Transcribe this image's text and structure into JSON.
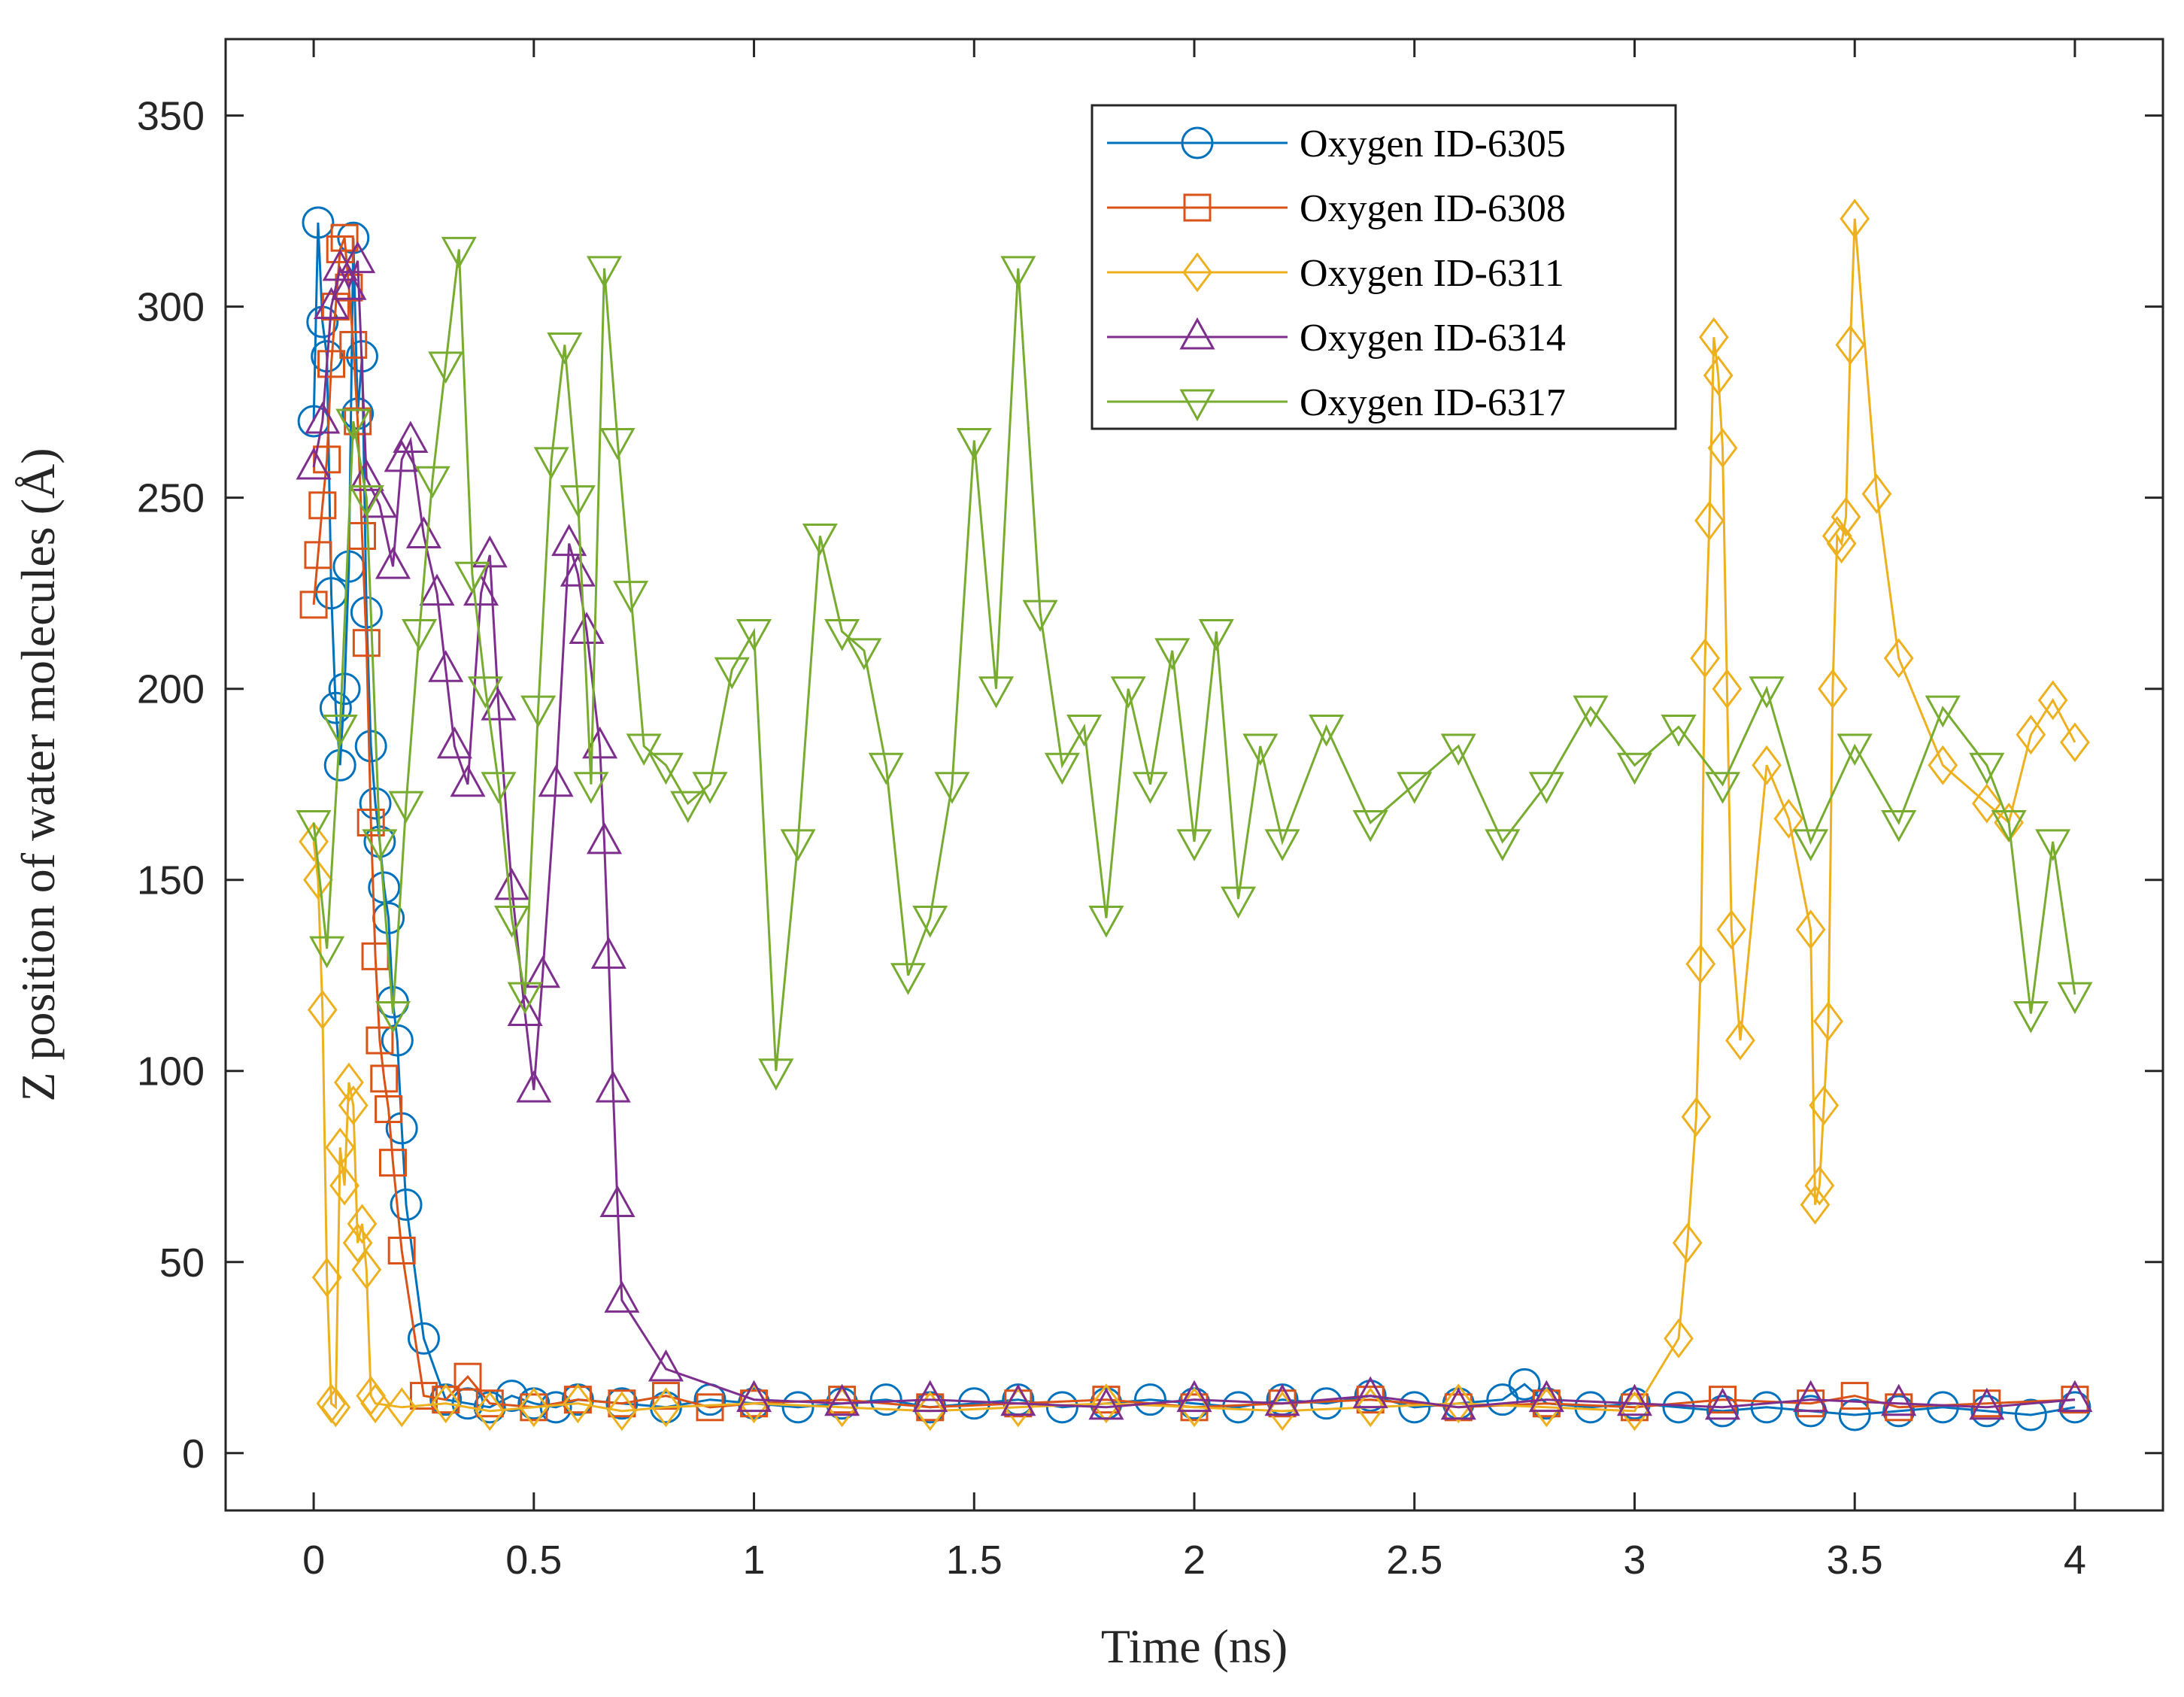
{
  "chart_data": {
    "type": "line",
    "title": "",
    "xlabel": "Time (ns)",
    "ylabel": "Z position of water molecules (Å)",
    "xlim": [
      -0.2,
      4.2
    ],
    "ylim": [
      -15,
      370
    ],
    "xticks": [
      "0",
      "0.5",
      "1",
      "1.5",
      "2",
      "2.5",
      "3",
      "3.5",
      "4"
    ],
    "yticks": [
      "0",
      "50",
      "100",
      "150",
      "200",
      "250",
      "300",
      "350"
    ],
    "grid": false,
    "legend_position": "top-right",
    "series": [
      {
        "name": "Oxygen ID-6305",
        "color": "#0072BD",
        "marker": "circle",
        "x": [
          0.0,
          0.01,
          0.02,
          0.03,
          0.04,
          0.05,
          0.06,
          0.07,
          0.08,
          0.09,
          0.1,
          0.11,
          0.12,
          0.13,
          0.14,
          0.15,
          0.16,
          0.17,
          0.18,
          0.19,
          0.2,
          0.21,
          0.25,
          0.3,
          0.35,
          0.4,
          0.45,
          0.5,
          0.55,
          0.6,
          0.7,
          0.8,
          0.9,
          1.0,
          1.1,
          1.2,
          1.3,
          1.4,
          1.5,
          1.6,
          1.7,
          1.8,
          1.9,
          2.0,
          2.1,
          2.2,
          2.3,
          2.4,
          2.5,
          2.6,
          2.7,
          2.75,
          2.8,
          2.9,
          3.0,
          3.1,
          3.2,
          3.3,
          3.4,
          3.5,
          3.6,
          3.7,
          3.8,
          3.9,
          4.0
        ],
        "values": [
          270,
          322,
          296,
          287,
          225,
          195,
          180,
          200,
          232,
          318,
          272,
          287,
          220,
          185,
          170,
          160,
          148,
          140,
          118,
          108,
          85,
          65,
          30,
          14,
          13,
          12,
          15,
          13,
          12,
          14,
          13,
          12,
          14,
          13,
          12,
          13,
          14,
          12,
          13,
          14,
          12,
          13,
          14,
          13,
          12,
          14,
          13,
          15,
          12,
          13,
          14,
          18,
          13,
          12,
          13,
          12,
          11,
          12,
          11,
          10,
          11,
          12,
          11,
          10,
          12
        ]
      },
      {
        "name": "Oxygen ID-6308",
        "color": "#D95319",
        "marker": "square",
        "x": [
          0.0,
          0.01,
          0.02,
          0.03,
          0.04,
          0.05,
          0.06,
          0.07,
          0.08,
          0.09,
          0.1,
          0.11,
          0.12,
          0.13,
          0.14,
          0.15,
          0.16,
          0.17,
          0.18,
          0.2,
          0.25,
          0.3,
          0.35,
          0.4,
          0.5,
          0.6,
          0.7,
          0.8,
          0.9,
          1.0,
          1.2,
          1.4,
          1.6,
          1.8,
          2.0,
          2.2,
          2.4,
          2.6,
          2.8,
          3.0,
          3.2,
          3.4,
          3.5,
          3.6,
          3.8,
          4.0
        ],
        "values": [
          222,
          235,
          248,
          260,
          285,
          300,
          315,
          318,
          305,
          290,
          270,
          240,
          212,
          165,
          130,
          108,
          98,
          90,
          76,
          53,
          15,
          14,
          20,
          13,
          12,
          14,
          13,
          15,
          12,
          13,
          14,
          12,
          13,
          14,
          12,
          13,
          14,
          12,
          13,
          12,
          14,
          13,
          15,
          12,
          13,
          14
        ]
      },
      {
        "name": "Oxygen ID-6311",
        "color": "#EDB120",
        "marker": "diamond",
        "x": [
          0.0,
          0.01,
          0.02,
          0.03,
          0.04,
          0.05,
          0.06,
          0.07,
          0.08,
          0.09,
          0.1,
          0.11,
          0.12,
          0.13,
          0.14,
          0.2,
          0.3,
          0.4,
          0.5,
          0.6,
          0.7,
          0.8,
          1.0,
          1.2,
          1.4,
          1.6,
          1.8,
          2.0,
          2.2,
          2.4,
          2.6,
          2.8,
          3.0,
          3.1,
          3.12,
          3.14,
          3.15,
          3.16,
          3.17,
          3.18,
          3.19,
          3.2,
          3.21,
          3.22,
          3.24,
          3.3,
          3.35,
          3.4,
          3.41,
          3.42,
          3.43,
          3.44,
          3.45,
          3.46,
          3.47,
          3.48,
          3.49,
          3.5,
          3.55,
          3.6,
          3.7,
          3.8,
          3.85,
          3.9,
          3.95,
          4.0
        ],
        "values": [
          160,
          150,
          116,
          46,
          13,
          12,
          80,
          70,
          97,
          91,
          55,
          60,
          48,
          15,
          13,
          12,
          13,
          11,
          12,
          13,
          11,
          12,
          13,
          12,
          11,
          12,
          13,
          12,
          11,
          12,
          13,
          12,
          11,
          30,
          55,
          88,
          128,
          208,
          244,
          292,
          282,
          263,
          200,
          137,
          108,
          180,
          166,
          137,
          65,
          70,
          91,
          113,
          200,
          240,
          238,
          245,
          290,
          323,
          251,
          208,
          180,
          170,
          165,
          188,
          197,
          186
        ]
      },
      {
        "name": "Oxygen ID-6314",
        "color": "#7E2F8E",
        "marker": "triangle-up",
        "x": [
          0.0,
          0.02,
          0.04,
          0.06,
          0.08,
          0.1,
          0.12,
          0.15,
          0.18,
          0.2,
          0.22,
          0.25,
          0.28,
          0.3,
          0.32,
          0.35,
          0.38,
          0.4,
          0.42,
          0.45,
          0.48,
          0.5,
          0.52,
          0.55,
          0.58,
          0.6,
          0.62,
          0.65,
          0.66,
          0.67,
          0.68,
          0.69,
          0.7,
          0.8,
          1.0,
          1.2,
          1.4,
          1.6,
          1.8,
          2.0,
          2.2,
          2.4,
          2.6,
          2.8,
          3.0,
          3.2,
          3.4,
          3.6,
          3.8,
          4.0
        ],
        "values": [
          258,
          270,
          300,
          310,
          305,
          312,
          255,
          248,
          232,
          260,
          265,
          240,
          225,
          205,
          185,
          175,
          225,
          235,
          195,
          148,
          115,
          95,
          125,
          175,
          238,
          230,
          215,
          185,
          160,
          130,
          95,
          65,
          40,
          22,
          14,
          13,
          14,
          13,
          12,
          14,
          13,
          15,
          12,
          14,
          13,
          12,
          14,
          13,
          12,
          14
        ]
      },
      {
        "name": "Oxygen ID-6317",
        "color": "#77AC30",
        "marker": "triangle-down",
        "x": [
          0.0,
          0.03,
          0.06,
          0.09,
          0.12,
          0.15,
          0.18,
          0.21,
          0.24,
          0.27,
          0.3,
          0.33,
          0.36,
          0.39,
          0.42,
          0.45,
          0.48,
          0.51,
          0.54,
          0.57,
          0.6,
          0.63,
          0.66,
          0.69,
          0.72,
          0.75,
          0.8,
          0.85,
          0.9,
          0.95,
          1.0,
          1.05,
          1.1,
          1.15,
          1.2,
          1.25,
          1.3,
          1.35,
          1.4,
          1.45,
          1.5,
          1.55,
          1.6,
          1.65,
          1.7,
          1.75,
          1.8,
          1.85,
          1.9,
          1.95,
          2.0,
          2.05,
          2.1,
          2.15,
          2.2,
          2.3,
          2.4,
          2.5,
          2.6,
          2.7,
          2.8,
          2.9,
          3.0,
          3.1,
          3.2,
          3.3,
          3.4,
          3.5,
          3.6,
          3.7,
          3.8,
          3.85,
          3.9,
          3.95,
          4.0
        ],
        "values": [
          165,
          132,
          190,
          270,
          250,
          160,
          115,
          170,
          215,
          255,
          285,
          315,
          230,
          200,
          175,
          140,
          120,
          195,
          260,
          290,
          250,
          175,
          310,
          265,
          225,
          185,
          180,
          170,
          175,
          205,
          215,
          100,
          160,
          240,
          215,
          210,
          180,
          125,
          140,
          175,
          265,
          200,
          310,
          220,
          180,
          190,
          140,
          200,
          175,
          210,
          160,
          215,
          145,
          185,
          160,
          190,
          165,
          175,
          185,
          160,
          175,
          195,
          180,
          190,
          175,
          200,
          160,
          185,
          165,
          195,
          180,
          165,
          115,
          160,
          120
        ]
      }
    ]
  }
}
